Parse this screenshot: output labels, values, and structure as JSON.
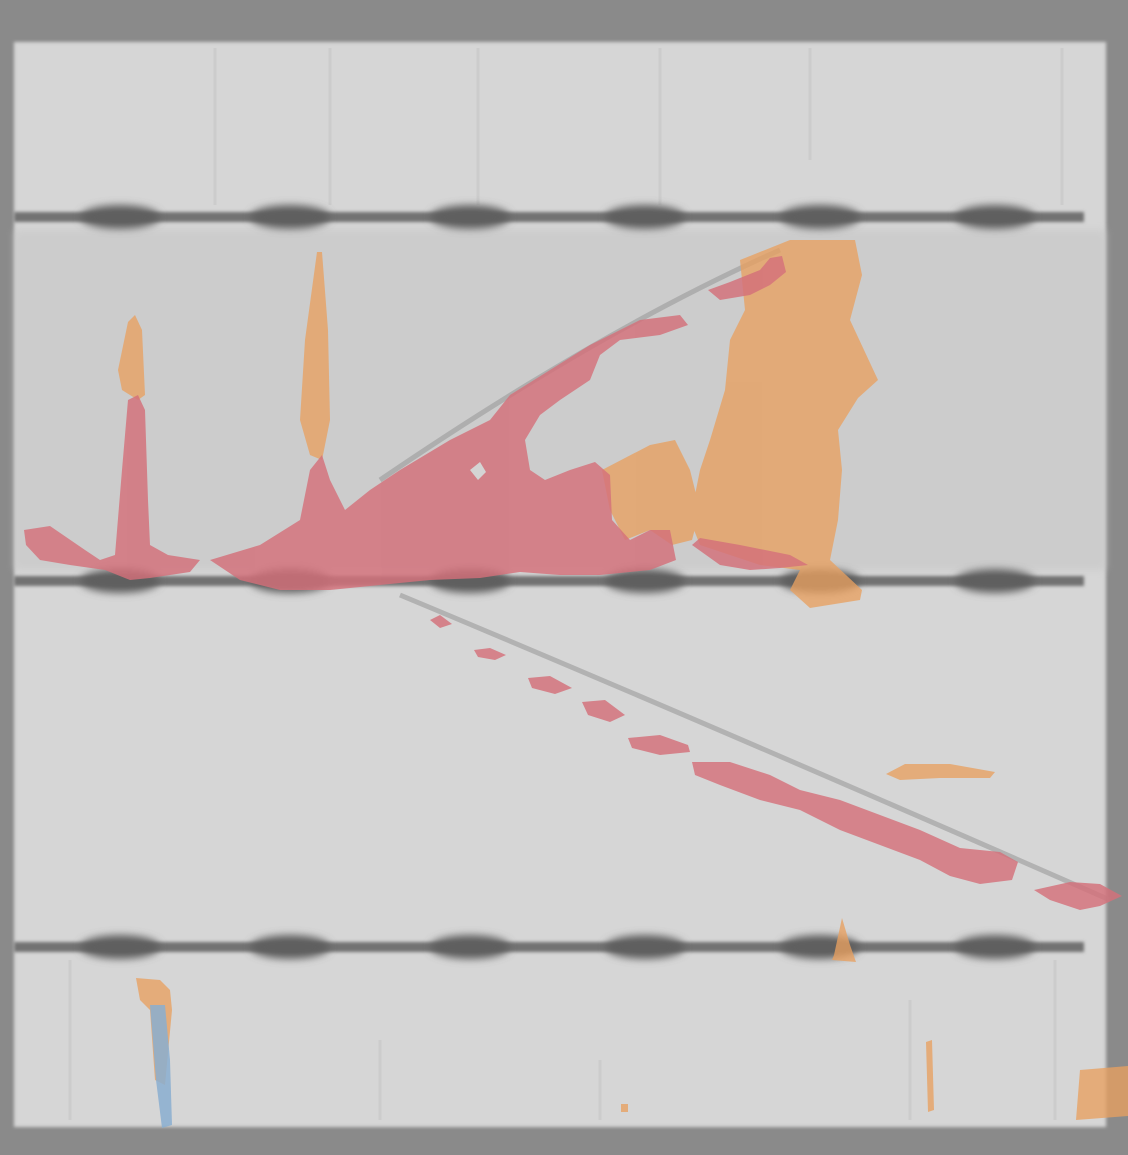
{
  "image": {
    "description_kind": "electroluminescence-style solar cell image with segmentation overlay",
    "colors": {
      "frame": "#8a8a8a",
      "cell_face": "#d6d6d6",
      "busbar": "#707070",
      "finger_line": "#c8c8c8",
      "crack_overlay": "#d4707a",
      "dark_region_overlay": "#e8a060",
      "blue_overlay": "#8aaed0"
    },
    "overlay_classes": [
      {
        "name": "crack-overlay",
        "color": "#d4707a"
      },
      {
        "name": "dark-region-overlay",
        "color": "#e8a060"
      },
      {
        "name": "blue-overlay",
        "color": "#8aaed0"
      }
    ]
  }
}
